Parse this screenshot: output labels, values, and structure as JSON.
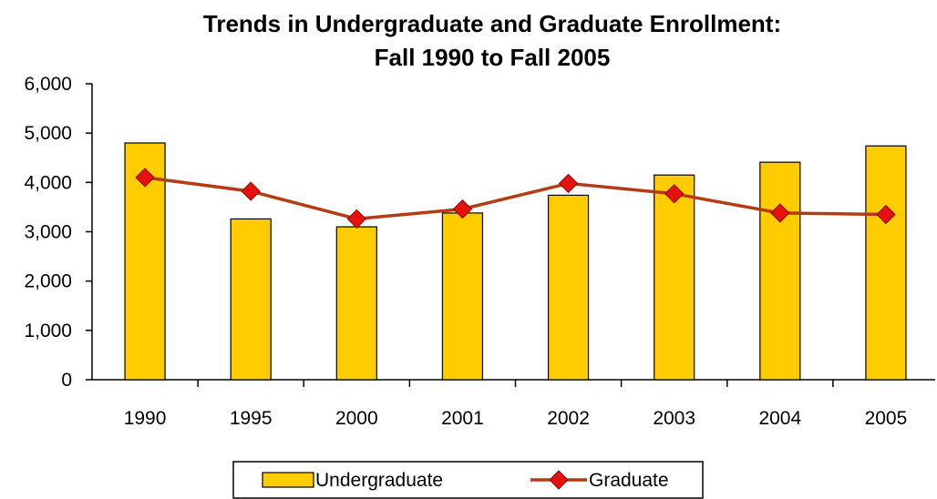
{
  "chart_data": {
    "type": "bar",
    "title": "Trends in Undergraduate and Graduate Enrollment:",
    "subtitle": "Fall 1990 to Fall 2005",
    "xlabel": "",
    "ylabel": "",
    "categories": [
      "1990",
      "1995",
      "2000",
      "2001",
      "2002",
      "2003",
      "2004",
      "2005"
    ],
    "series": [
      {
        "name": "Undergraduate",
        "type": "bar",
        "color": "#FFCC00",
        "values": [
          4800,
          3260,
          3100,
          3380,
          3740,
          4150,
          4410,
          4740
        ]
      },
      {
        "name": "Graduate",
        "type": "line",
        "color": "#B43C14",
        "marker_color": "#E8100C",
        "values": [
          4100,
          3820,
          3260,
          3460,
          3980,
          3770,
          3380,
          3350
        ]
      }
    ],
    "ylim": [
      0,
      6000
    ],
    "yticks": [
      0,
      1000,
      2000,
      3000,
      4000,
      5000,
      6000
    ],
    "ytick_labels": [
      "0",
      "1,000",
      "2,000",
      "3,000",
      "4,000",
      "5,000",
      "6,000"
    ],
    "grid": false,
    "legend_position": "bottom"
  }
}
